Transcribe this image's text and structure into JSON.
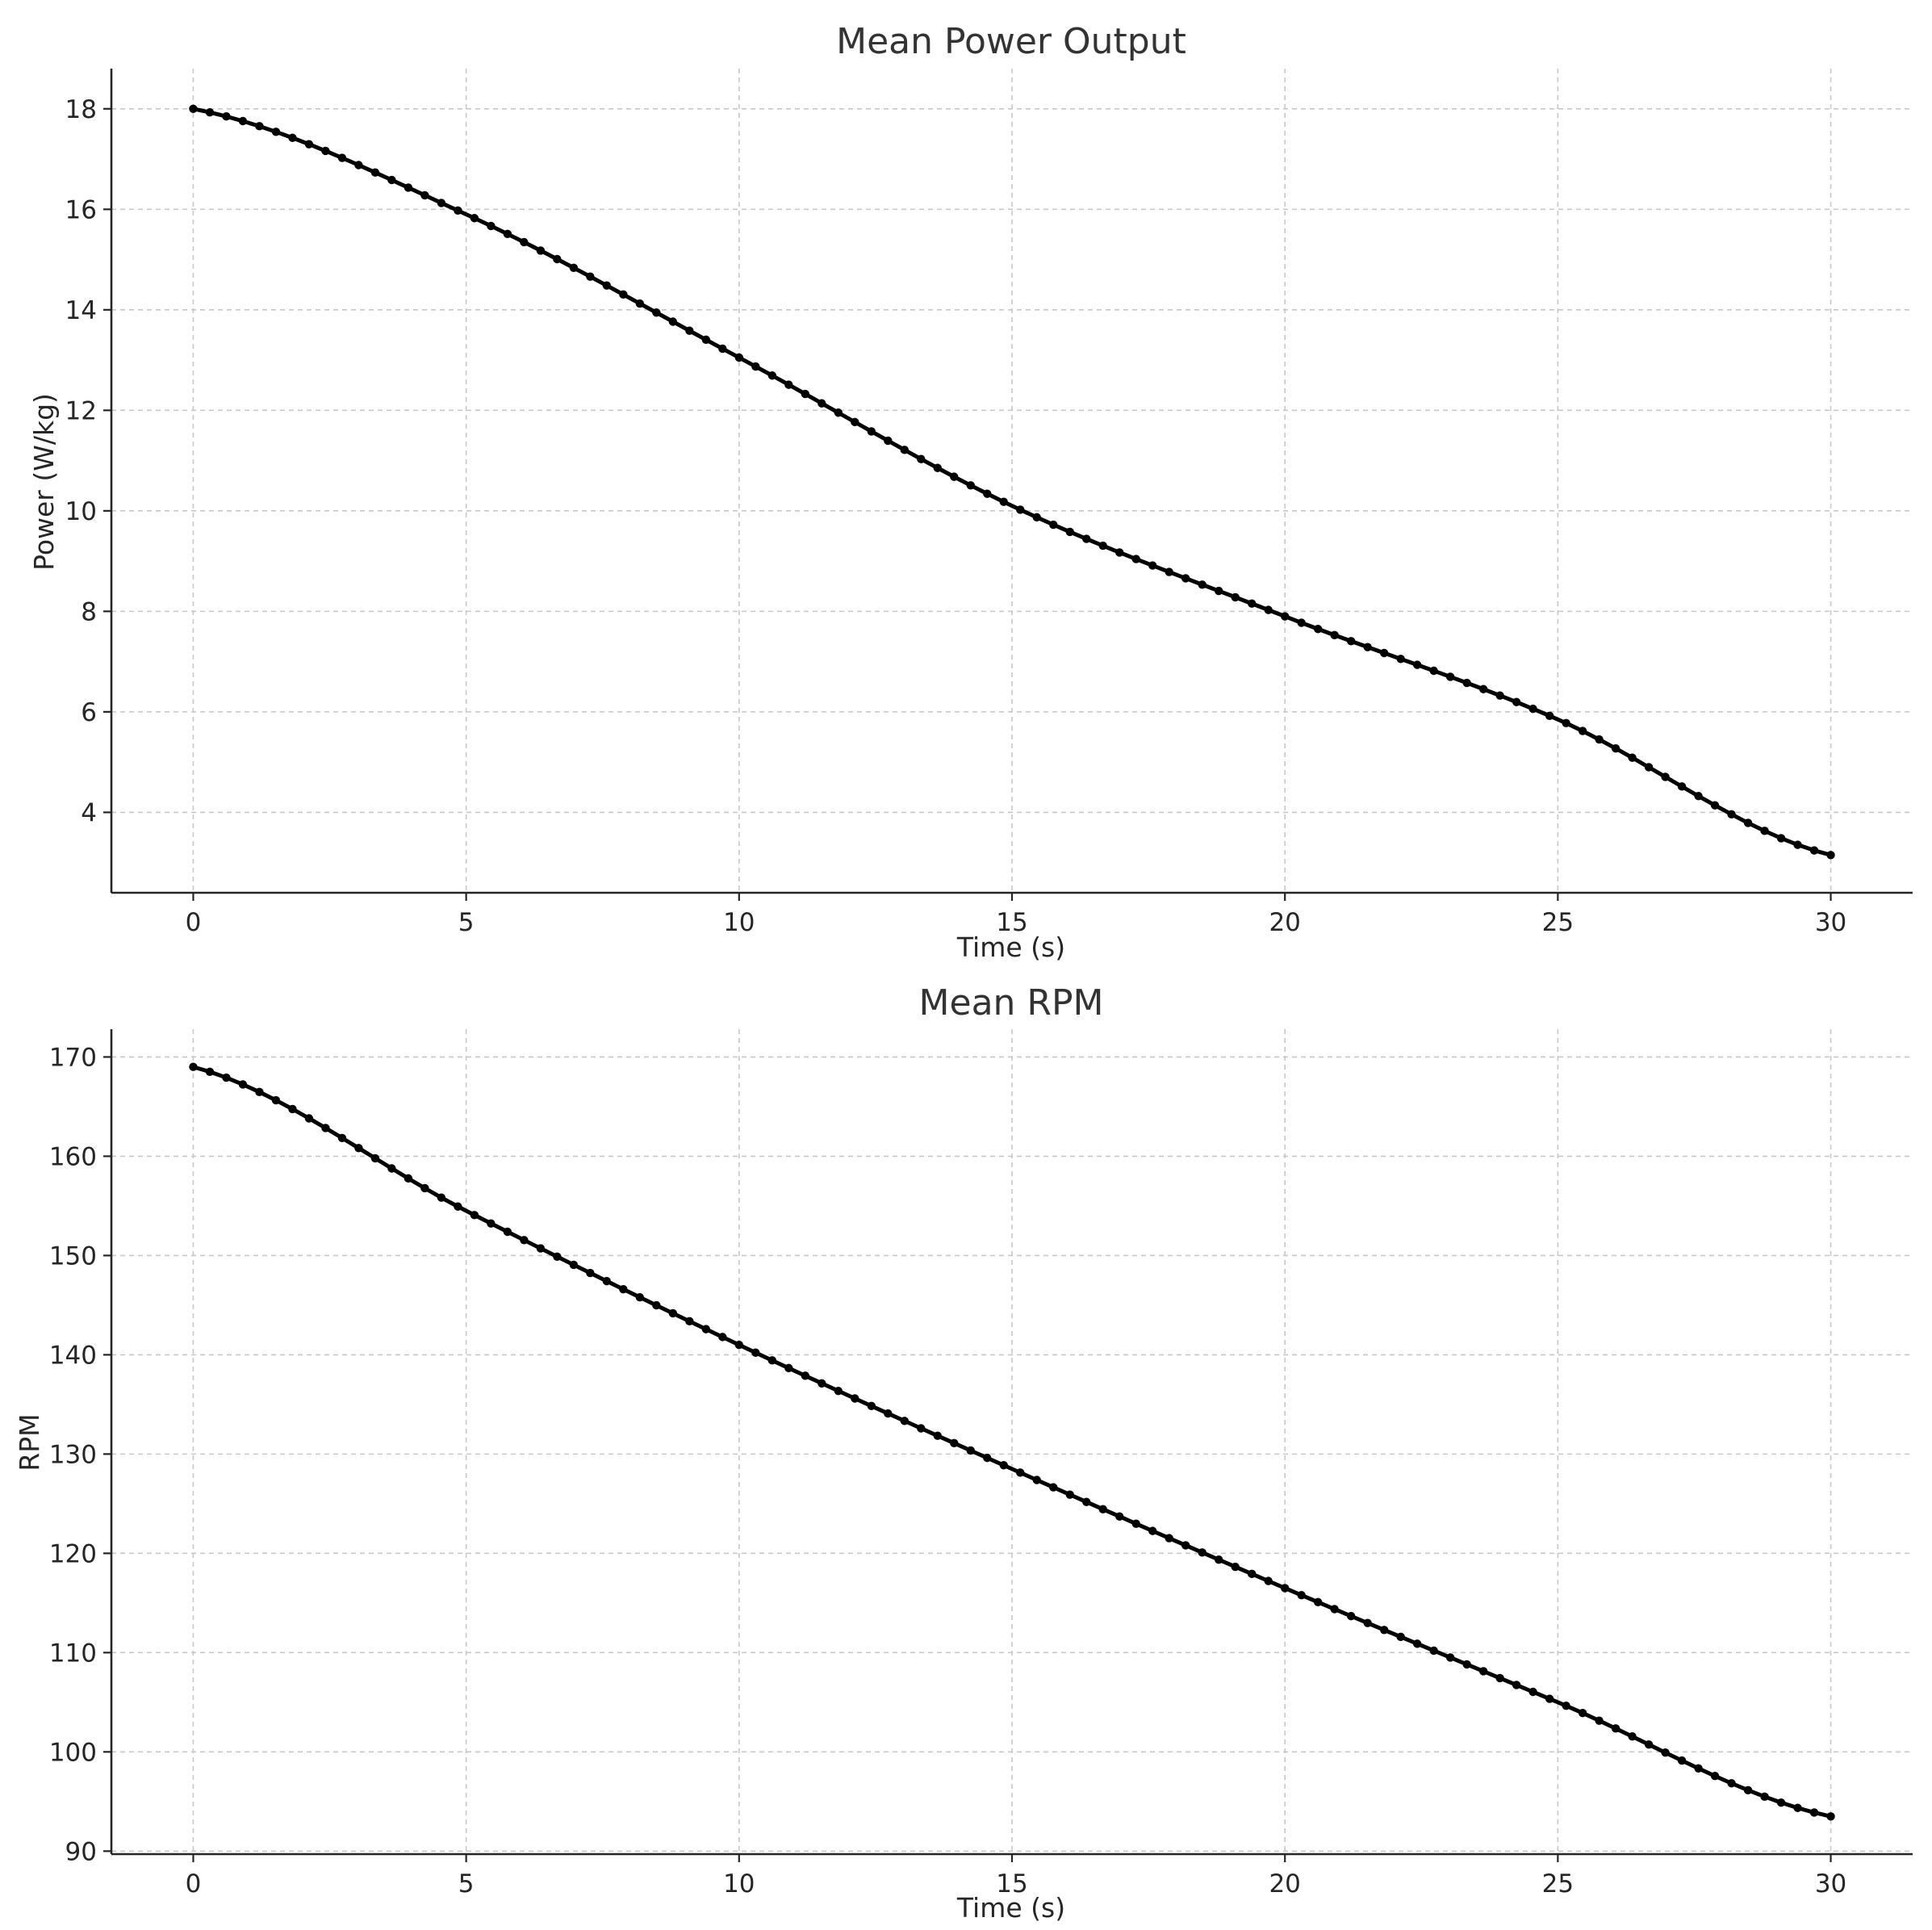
{
  "colors": {
    "series": "#000000",
    "grid": "#c8c8c8",
    "axis": "#262626",
    "title": "#333333"
  },
  "chart_data": [
    {
      "type": "line",
      "title": "Mean Power Output",
      "xlabel": "Time (s)",
      "ylabel": "Power (W/kg)",
      "xlim": [
        -1.5,
        31.5
      ],
      "ylim": [
        2.4,
        18.8
      ],
      "xticks": [
        0,
        5,
        10,
        15,
        20,
        25,
        30
      ],
      "xtick_labels": [
        "0",
        "5",
        "10",
        "15",
        "20",
        "25",
        "30"
      ],
      "yticks": [
        4,
        6,
        8,
        10,
        12,
        14,
        16,
        18
      ],
      "ytick_labels": [
        "4",
        "6",
        "8",
        "10",
        "12",
        "14",
        "16",
        "18"
      ],
      "grid": true,
      "marker": "circle",
      "n_points": 100,
      "x_range": [
        0,
        30
      ],
      "key_points": {
        "x": [
          0,
          5,
          10,
          15,
          20,
          25,
          30
        ],
        "y": [
          18.0,
          15.9,
          13.05,
          10.1,
          7.9,
          5.85,
          3.15
        ]
      }
    },
    {
      "type": "line",
      "title": "Mean RPM",
      "xlabel": "Time (s)",
      "ylabel": "RPM",
      "xlim": [
        -1.5,
        31.5
      ],
      "ylim": [
        89.7,
        172.8
      ],
      "xticks": [
        0,
        5,
        10,
        15,
        20,
        25,
        30
      ],
      "xtick_labels": [
        "0",
        "5",
        "10",
        "15",
        "20",
        "25",
        "30"
      ],
      "yticks": [
        90,
        100,
        110,
        120,
        130,
        140,
        150,
        160,
        170
      ],
      "ytick_labels": [
        "90",
        "100",
        "110",
        "120",
        "130",
        "140",
        "150",
        "160",
        "170"
      ],
      "grid": true,
      "marker": "circle",
      "n_points": 100,
      "x_range": [
        0,
        30
      ],
      "key_points": {
        "x": [
          0,
          5,
          10,
          15,
          20,
          25,
          30
        ],
        "y": [
          169,
          154.5,
          141,
          128.5,
          116.5,
          105,
          93.5
        ]
      }
    }
  ]
}
